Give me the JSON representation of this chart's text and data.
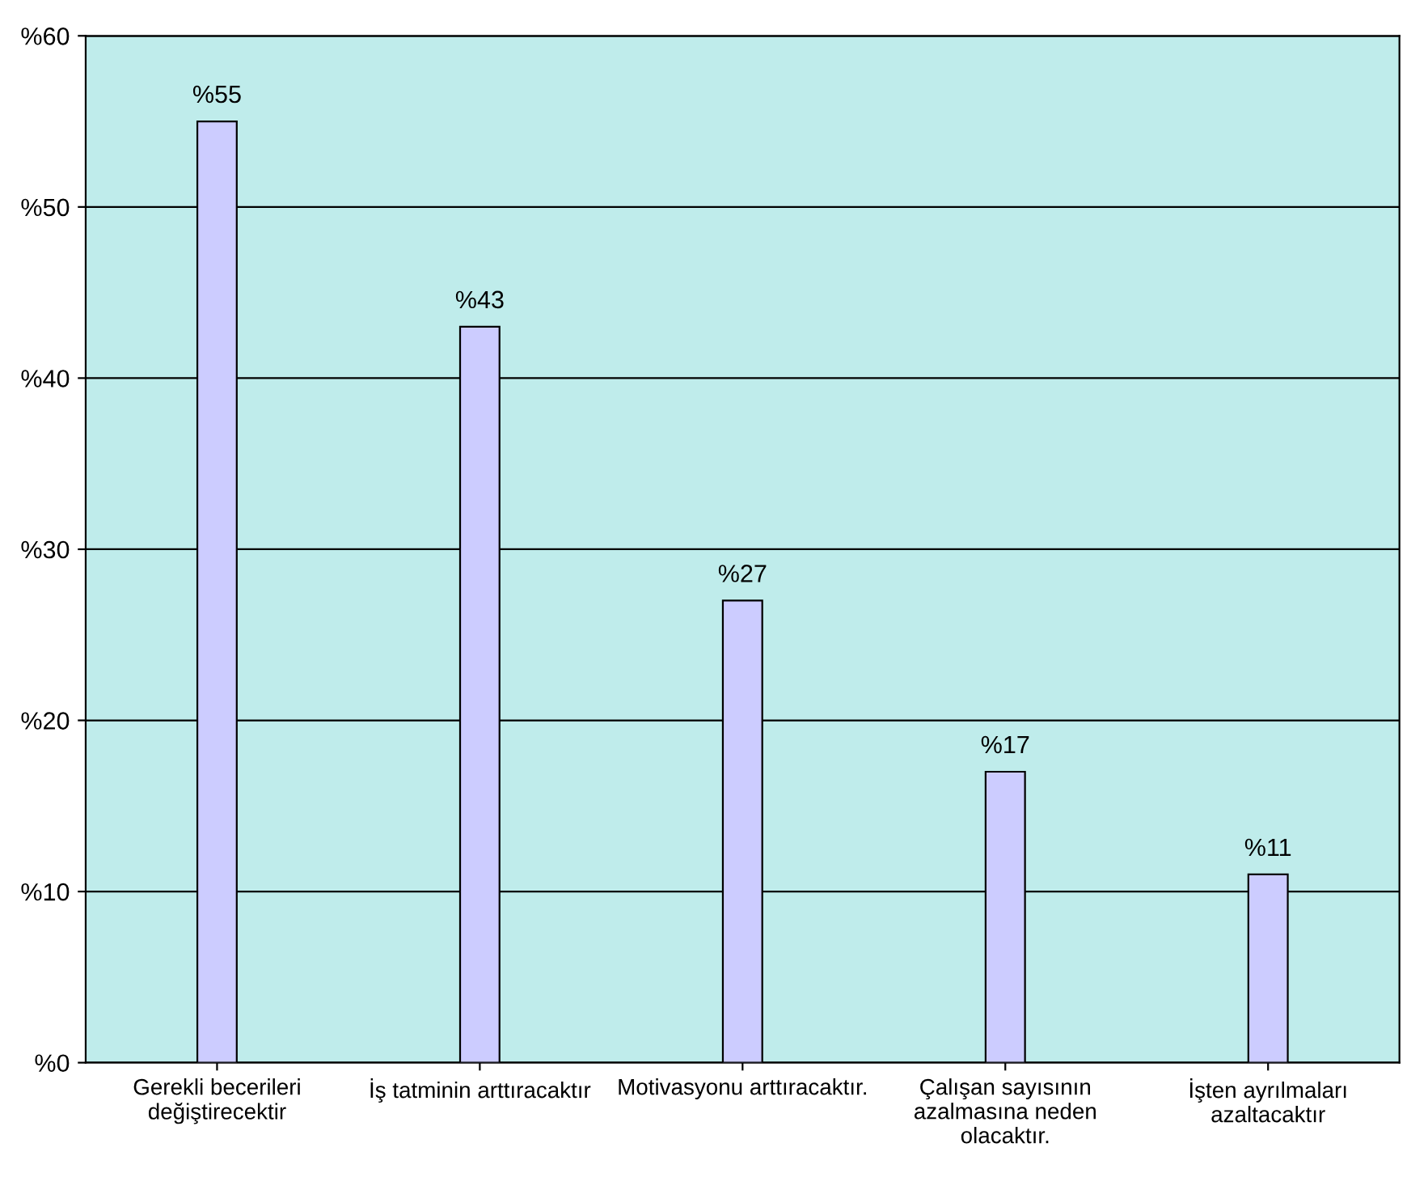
{
  "chart_data": {
    "type": "bar",
    "categories": [
      "Gerekli becerileri\ndeğiştirecektir",
      "İş tatminin arttıracaktır",
      "Motivasyonu arttıracaktır.",
      "Çalışan sayısının\nazalmasına neden\nolacaktır.",
      "İşten ayrılmaları\nazaltacaktır"
    ],
    "values": [
      55,
      43,
      27,
      17,
      11
    ],
    "value_labels": [
      "%55",
      "%43",
      "%27",
      "%17",
      "%11"
    ],
    "color": "#ccccff",
    "ylim": [
      0,
      60
    ],
    "yticks": [
      {
        "value": 0,
        "label": "%0"
      },
      {
        "value": 10,
        "label": "%10"
      },
      {
        "value": 20,
        "label": "%20"
      },
      {
        "value": 30,
        "label": "%30"
      },
      {
        "value": 40,
        "label": "%40"
      },
      {
        "value": 50,
        "label": "%50"
      },
      {
        "value": 60,
        "label": "%60"
      }
    ],
    "grid": "y"
  }
}
